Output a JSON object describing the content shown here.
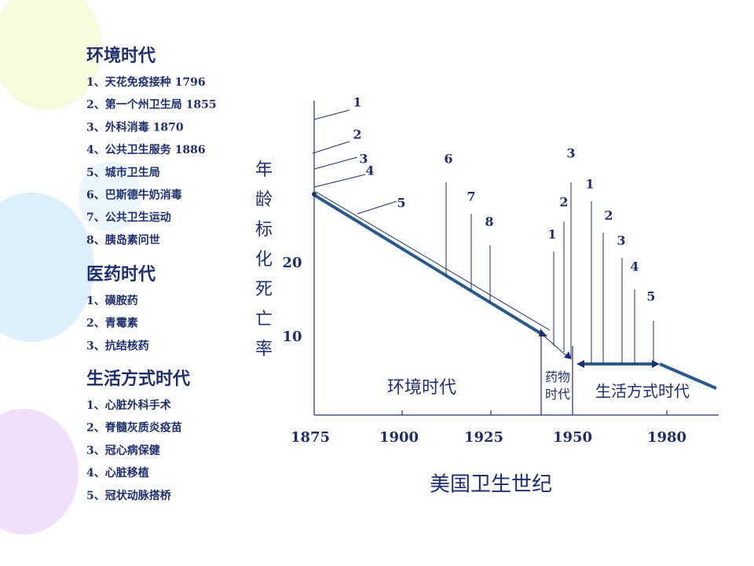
{
  "sections": [
    {
      "title": "环境时代",
      "items": [
        "1、天花免疫接种  1796",
        "2、第一个州卫生局     1855",
        "3、外科消毒 1870",
        "4、公共卫生服务 1886",
        "5、城市卫生局",
        "6、巴斯德牛奶消毒",
        "7、公共卫生运动",
        "8、胰岛素问世"
      ]
    },
    {
      "title": "医药时代",
      "items": [
        "1、磺胺药",
        "2、青霉素",
        "3、抗结核药"
      ]
    },
    {
      "title": "生活方式时代",
      "items": [
        "1、心脏外科手术",
        "2、脊髓灰质炎疫苗",
        "3、冠心病保健",
        "4、心脏移植",
        "5、冠状动脉搭桥"
      ]
    }
  ],
  "diagram": {
    "y_label": "年龄标化死亡率",
    "y_ticks": [
      "20",
      "10"
    ],
    "x_ticks": [
      "1875",
      "1900",
      "1925",
      "1950",
      "1980"
    ],
    "x_title": "美国卫生世纪",
    "eras": [
      "环境时代",
      "药物时代",
      "生活方式时代"
    ],
    "env_markers": [
      "1",
      "2",
      "3",
      "4",
      "5",
      "6",
      "7",
      "8"
    ],
    "med_markers": [
      "1",
      "2",
      "3"
    ],
    "life_markers": [
      "1",
      "2",
      "3",
      "4",
      "5"
    ]
  }
}
